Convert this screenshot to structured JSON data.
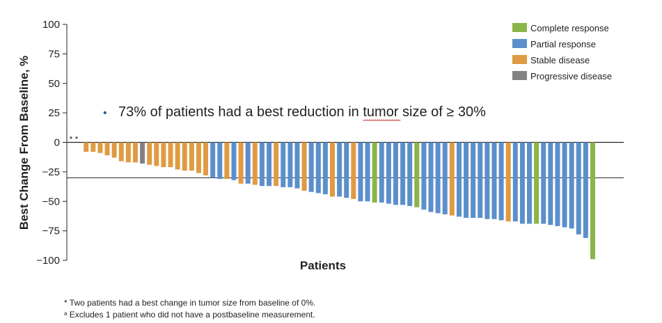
{
  "chart_data": {
    "type": "bar",
    "title": "",
    "xlabel": "Patients",
    "ylabel": "Best Change From Baseline, %",
    "ylim": [
      -100,
      100
    ],
    "yticks": [
      100,
      75,
      50,
      25,
      0,
      -25,
      -50,
      -75,
      -100
    ],
    "ytick_labels": [
      "100",
      "75",
      "50",
      "25",
      "0",
      "−25",
      "−50",
      "−75",
      "−100"
    ],
    "reference_line": -30,
    "zero_bar_marker": "* *",
    "annotation": {
      "bullet": "•",
      "text_before": "73% of patients had a best reduction in tumor size of ≥ 30%",
      "text": "73% of patients had a best reduction in tumor size of ≥ 30%"
    },
    "legend": {
      "position": "top-right",
      "entries": [
        {
          "name": "Complete response",
          "key": "CR",
          "color": "#8ab54a"
        },
        {
          "name": "Partial response",
          "key": "PR",
          "color": "#5b8fcc"
        },
        {
          "name": "Stable disease",
          "key": "SD",
          "color": "#e09b42"
        },
        {
          "name": "Progressive disease",
          "key": "PD",
          "color": "#828282"
        }
      ]
    },
    "bars": [
      {
        "value": 0,
        "cat": "SD"
      },
      {
        "value": 0,
        "cat": "SD"
      },
      {
        "value": -8,
        "cat": "SD"
      },
      {
        "value": -8,
        "cat": "SD"
      },
      {
        "value": -9,
        "cat": "SD"
      },
      {
        "value": -11,
        "cat": "SD"
      },
      {
        "value": -13,
        "cat": "SD"
      },
      {
        "value": -16,
        "cat": "SD"
      },
      {
        "value": -17,
        "cat": "SD"
      },
      {
        "value": -17,
        "cat": "SD"
      },
      {
        "value": -18,
        "cat": "PD"
      },
      {
        "value": -19,
        "cat": "SD"
      },
      {
        "value": -20,
        "cat": "SD"
      },
      {
        "value": -21,
        "cat": "SD"
      },
      {
        "value": -21,
        "cat": "SD"
      },
      {
        "value": -23,
        "cat": "SD"
      },
      {
        "value": -24,
        "cat": "SD"
      },
      {
        "value": -24,
        "cat": "SD"
      },
      {
        "value": -26,
        "cat": "SD"
      },
      {
        "value": -28,
        "cat": "SD"
      },
      {
        "value": -30,
        "cat": "PR"
      },
      {
        "value": -31,
        "cat": "PR"
      },
      {
        "value": -31,
        "cat": "SD"
      },
      {
        "value": -32,
        "cat": "PR"
      },
      {
        "value": -35,
        "cat": "SD"
      },
      {
        "value": -35,
        "cat": "PR"
      },
      {
        "value": -36,
        "cat": "SD"
      },
      {
        "value": -37,
        "cat": "PR"
      },
      {
        "value": -37,
        "cat": "PR"
      },
      {
        "value": -37,
        "cat": "SD"
      },
      {
        "value": -38,
        "cat": "PR"
      },
      {
        "value": -38,
        "cat": "PR"
      },
      {
        "value": -39,
        "cat": "PR"
      },
      {
        "value": -41,
        "cat": "SD"
      },
      {
        "value": -42,
        "cat": "PR"
      },
      {
        "value": -43,
        "cat": "PR"
      },
      {
        "value": -44,
        "cat": "PR"
      },
      {
        "value": -46,
        "cat": "SD"
      },
      {
        "value": -46,
        "cat": "PR"
      },
      {
        "value": -47,
        "cat": "PR"
      },
      {
        "value": -48,
        "cat": "SD"
      },
      {
        "value": -50,
        "cat": "PR"
      },
      {
        "value": -50,
        "cat": "PR"
      },
      {
        "value": -51,
        "cat": "CR"
      },
      {
        "value": -51,
        "cat": "PR"
      },
      {
        "value": -52,
        "cat": "PR"
      },
      {
        "value": -53,
        "cat": "PR"
      },
      {
        "value": -53,
        "cat": "PR"
      },
      {
        "value": -54,
        "cat": "PR"
      },
      {
        "value": -55,
        "cat": "CR"
      },
      {
        "value": -57,
        "cat": "PR"
      },
      {
        "value": -59,
        "cat": "PR"
      },
      {
        "value": -60,
        "cat": "PR"
      },
      {
        "value": -61,
        "cat": "PR"
      },
      {
        "value": -62,
        "cat": "SD"
      },
      {
        "value": -63,
        "cat": "PR"
      },
      {
        "value": -64,
        "cat": "PR"
      },
      {
        "value": -64,
        "cat": "PR"
      },
      {
        "value": -64,
        "cat": "PR"
      },
      {
        "value": -65,
        "cat": "PR"
      },
      {
        "value": -65,
        "cat": "PR"
      },
      {
        "value": -66,
        "cat": "PR"
      },
      {
        "value": -67,
        "cat": "SD"
      },
      {
        "value": -67,
        "cat": "PR"
      },
      {
        "value": -69,
        "cat": "PR"
      },
      {
        "value": -69,
        "cat": "PR"
      },
      {
        "value": -69,
        "cat": "CR"
      },
      {
        "value": -69,
        "cat": "PR"
      },
      {
        "value": -70,
        "cat": "PR"
      },
      {
        "value": -71,
        "cat": "PR"
      },
      {
        "value": -72,
        "cat": "PR"
      },
      {
        "value": -73,
        "cat": "PR"
      },
      {
        "value": -78,
        "cat": "PR"
      },
      {
        "value": -81,
        "cat": "PR"
      },
      {
        "value": -99,
        "cat": "CR"
      }
    ]
  },
  "footnotes": {
    "star": "* Two patients had a best change in tumor size from baseline of 0%.",
    "a_marker": "a",
    "a_text": " Excludes 1 patient who did not have a postbaseline measurement."
  }
}
